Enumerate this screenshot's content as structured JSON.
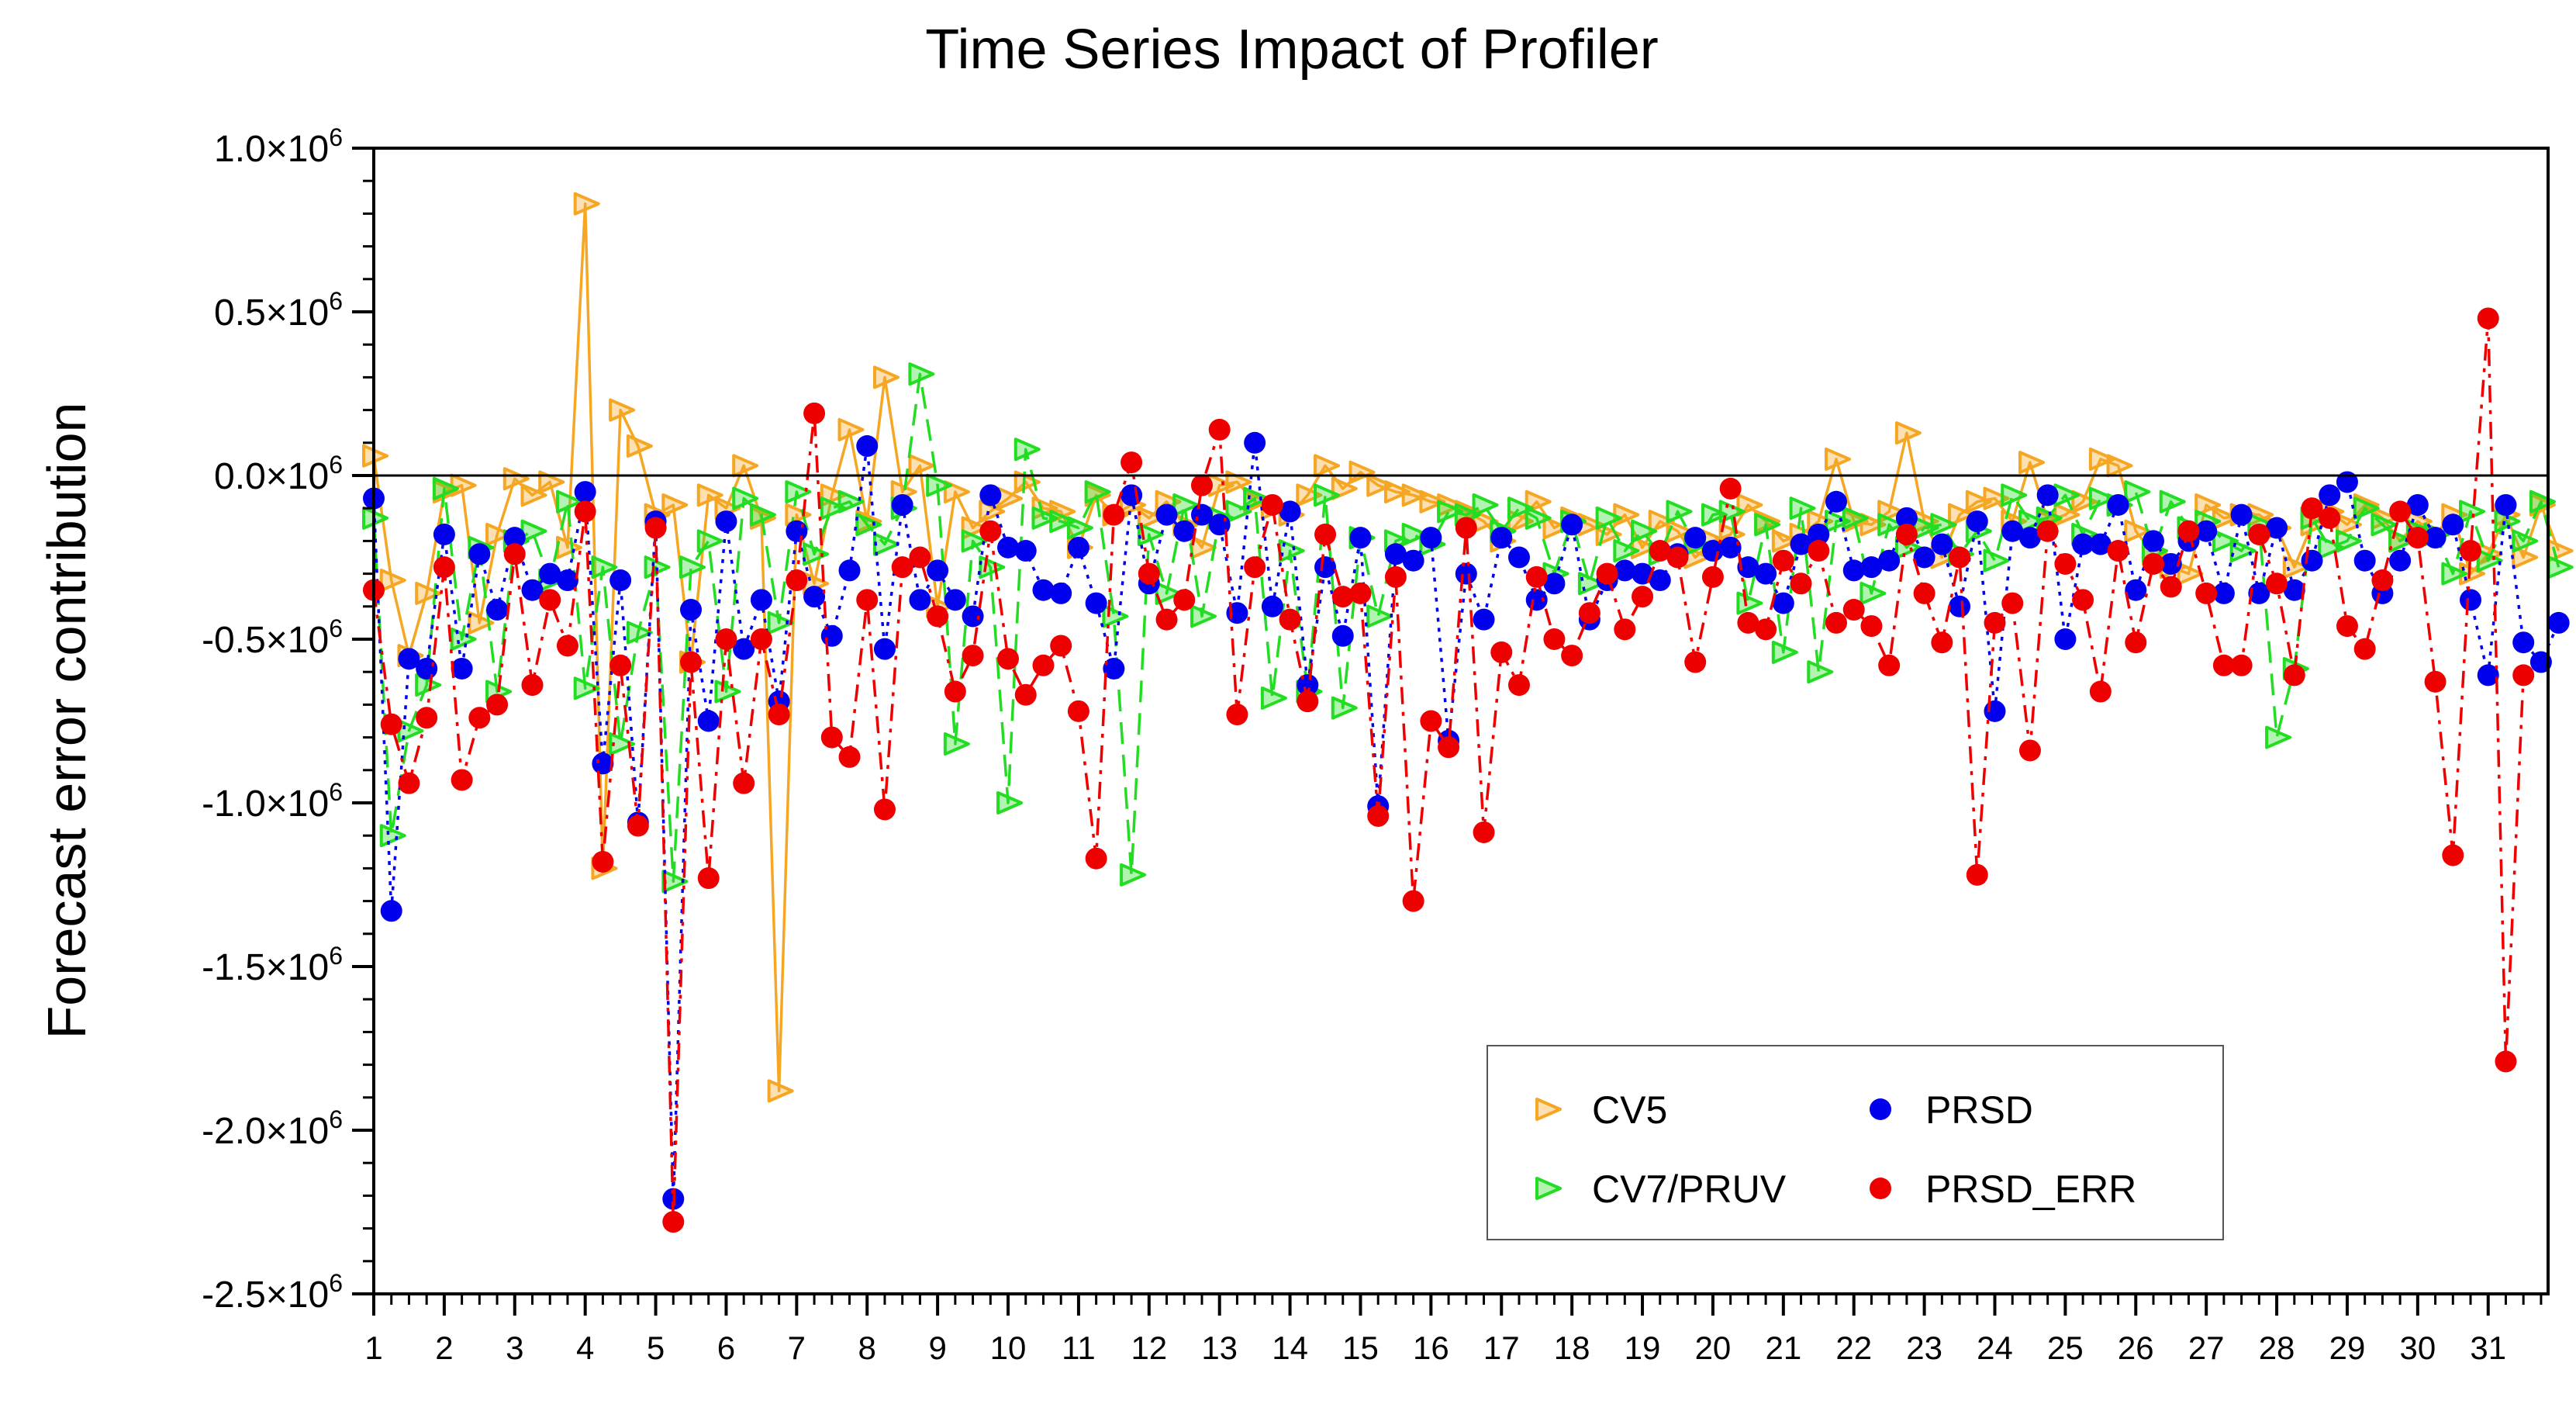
{
  "chart_data": {
    "type": "line",
    "title": "Time Series Impact of Profiler",
    "ylabel": "Forecast error contribution",
    "xlabel": "",
    "unit_multiplier_label": "×10",
    "unit_exponent": "6",
    "ylim": [
      -2.5,
      1.0
    ],
    "y_ticks": [
      1.0,
      0.5,
      0.0,
      -0.5,
      -1.0,
      -1.5,
      -2.0,
      -2.5
    ],
    "y_tick_labels": [
      "1.0",
      "0.5",
      "0.0",
      "-0.5",
      "-1.0",
      "-1.5",
      "-2.0",
      "-2.5"
    ],
    "xlim": [
      1,
      31.85
    ],
    "x_ticks": [
      1,
      2,
      3,
      4,
      5,
      6,
      7,
      8,
      9,
      10,
      11,
      12,
      13,
      14,
      15,
      16,
      17,
      18,
      19,
      20,
      21,
      22,
      23,
      24,
      25,
      26,
      27,
      28,
      29,
      30,
      31
    ],
    "x_tick_labels": [
      "1",
      "2",
      "3",
      "4",
      "5",
      "6",
      "7",
      "8",
      "9",
      "10",
      "11",
      "12",
      "13",
      "14",
      "15",
      "16",
      "17",
      "18",
      "19",
      "20",
      "21",
      "22",
      "23",
      "24",
      "25",
      "26",
      "27",
      "28",
      "29",
      "30",
      "31"
    ],
    "reference_line": 0.0,
    "grid": false,
    "legend_position": "bottom-right",
    "points_per_day": 4,
    "series": [
      {
        "name": "CV5",
        "color": "#f5a623",
        "marker": "triangle",
        "line": "solid",
        "values": [
          0.06,
          -0.32,
          -0.55,
          -0.36,
          -0.05,
          -0.03,
          -0.45,
          -0.18,
          -0.01,
          -0.06,
          -0.02,
          -0.22,
          0.83,
          -1.2,
          0.2,
          0.09,
          -0.12,
          -0.09,
          -0.57,
          -0.06,
          -0.1,
          0.03,
          -0.13,
          -1.88,
          -0.12,
          -0.33,
          -0.06,
          0.14,
          -0.14,
          0.3,
          -0.05,
          0.03,
          -0.4,
          -0.05,
          -0.16,
          -0.11,
          -0.07,
          -0.02,
          -0.1,
          -0.11,
          -0.22,
          -0.06,
          -0.12,
          -0.09,
          -0.13,
          -0.08,
          -0.15,
          -0.22,
          -0.03,
          -0.02,
          -0.08,
          -0.1,
          -0.12,
          -0.06,
          0.03,
          -0.04,
          0.01,
          -0.03,
          -0.05,
          -0.06,
          -0.08,
          -0.09,
          -0.11,
          -0.14,
          -0.2,
          -0.14,
          -0.08,
          -0.16,
          -0.13,
          -0.15,
          -0.18,
          -0.12,
          -0.22,
          -0.14,
          -0.17,
          -0.25,
          -0.2,
          -0.18,
          -0.09,
          -0.14,
          -0.2,
          -0.18,
          -0.14,
          0.05,
          -0.14,
          -0.15,
          -0.11,
          0.13,
          -0.14,
          -0.25,
          -0.12,
          -0.08,
          -0.07,
          -0.14,
          0.04,
          -0.14,
          -0.12,
          -0.08,
          0.05,
          0.03,
          -0.17,
          -0.24,
          -0.28,
          -0.3,
          -0.09,
          -0.13,
          -0.12,
          -0.12,
          -0.16,
          -0.28,
          -0.15,
          -0.11,
          -0.15,
          -0.09,
          -0.13,
          -0.2,
          -0.14,
          -0.18,
          -0.12,
          -0.3,
          -0.24,
          -0.12,
          -0.25,
          -0.09,
          -0.23
        ]
      },
      {
        "name": "CV7/PRUV",
        "color": "#22dd22",
        "marker": "triangle",
        "line": "dashed",
        "values": [
          -0.13,
          -1.1,
          -0.78,
          -0.64,
          -0.04,
          -0.5,
          -0.22,
          -0.66,
          -0.2,
          -0.17,
          -0.32,
          -0.08,
          -0.65,
          -0.28,
          -0.82,
          -0.48,
          -0.28,
          -1.24,
          -0.28,
          -0.2,
          -0.66,
          -0.07,
          -0.12,
          -0.45,
          -0.05,
          -0.24,
          -0.1,
          -0.08,
          -0.15,
          -0.21,
          -0.1,
          0.31,
          -0.03,
          -0.82,
          -0.2,
          -0.28,
          -1.0,
          0.08,
          -0.13,
          -0.14,
          -0.16,
          -0.05,
          -0.43,
          -1.22,
          -0.18,
          -0.36,
          -0.09,
          -0.43,
          -0.13,
          -0.11,
          -0.07,
          -0.68,
          -0.23,
          -0.66,
          -0.06,
          -0.71,
          -0.19,
          -0.43,
          -0.2,
          -0.18,
          -0.21,
          -0.11,
          -0.12,
          -0.09,
          -0.17,
          -0.1,
          -0.13,
          -0.3,
          -0.14,
          -0.33,
          -0.13,
          -0.23,
          -0.17,
          -0.24,
          -0.11,
          -0.21,
          -0.12,
          -0.11,
          -0.39,
          -0.15,
          -0.54,
          -0.1,
          -0.6,
          -0.14,
          -0.13,
          -0.36,
          -0.15,
          -0.22,
          -0.16,
          -0.15,
          -0.24,
          -0.17,
          -0.26,
          -0.06,
          -0.14,
          -0.13,
          -0.06,
          -0.18,
          -0.07,
          -0.09,
          -0.05,
          -0.23,
          -0.08,
          -0.16,
          -0.14,
          -0.2,
          -0.23,
          -0.15,
          -0.8,
          -0.59,
          -0.13,
          -0.22,
          -0.2,
          -0.1,
          -0.15,
          -0.2,
          -0.17,
          -0.18,
          -0.3,
          -0.11,
          -0.26,
          -0.14,
          -0.2,
          -0.08,
          -0.28
        ]
      },
      {
        "name": "PRSD",
        "color": "#0000ee",
        "marker": "circle",
        "line": "dotted",
        "values": [
          -0.07,
          -1.33,
          -0.56,
          -0.59,
          -0.18,
          -0.59,
          -0.24,
          -0.41,
          -0.19,
          -0.35,
          -0.3,
          -0.32,
          -0.05,
          -0.88,
          -0.32,
          -1.06,
          -0.14,
          -2.21,
          -0.41,
          -0.75,
          -0.14,
          -0.53,
          -0.38,
          -0.69,
          -0.17,
          -0.37,
          -0.49,
          -0.29,
          0.09,
          -0.53,
          -0.09,
          -0.38,
          -0.29,
          -0.38,
          -0.43,
          -0.06,
          -0.22,
          -0.23,
          -0.35,
          -0.36,
          -0.22,
          -0.39,
          -0.59,
          -0.06,
          -0.33,
          -0.12,
          -0.17,
          -0.12,
          -0.15,
          -0.42,
          0.1,
          -0.4,
          -0.11,
          -0.64,
          -0.28,
          -0.49,
          -0.19,
          -1.01,
          -0.24,
          -0.26,
          -0.19,
          -0.81,
          -0.3,
          -0.44,
          -0.19,
          -0.25,
          -0.38,
          -0.33,
          -0.15,
          -0.44,
          -0.32,
          -0.29,
          -0.3,
          -0.32,
          -0.24,
          -0.19,
          -0.23,
          -0.22,
          -0.28,
          -0.3,
          -0.39,
          -0.21,
          -0.18,
          -0.08,
          -0.29,
          -0.28,
          -0.26,
          -0.13,
          -0.25,
          -0.21,
          -0.4,
          -0.14,
          -0.72,
          -0.17,
          -0.19,
          -0.06,
          -0.5,
          -0.21,
          -0.21,
          -0.09,
          -0.35,
          -0.2,
          -0.27,
          -0.2,
          -0.17,
          -0.36,
          -0.12,
          -0.36,
          -0.16,
          -0.35,
          -0.26,
          -0.06,
          -0.02,
          -0.26,
          -0.36,
          -0.26,
          -0.09,
          -0.19,
          -0.15,
          -0.38,
          -0.61,
          -0.09,
          -0.51,
          -0.57,
          -0.45
        ]
      },
      {
        "name": "PRSD_ERR",
        "color": "#ee0000",
        "marker": "circle",
        "line": "dashdot",
        "values": [
          -0.35,
          -0.76,
          -0.94,
          -0.74,
          -0.28,
          -0.93,
          -0.74,
          -0.7,
          -0.24,
          -0.64,
          -0.38,
          -0.52,
          -0.11,
          -1.18,
          -0.58,
          -1.07,
          -0.16,
          -2.28,
          -0.57,
          -1.23,
          -0.5,
          -0.94,
          -0.5,
          -0.73,
          -0.32,
          0.19,
          -0.8,
          -0.86,
          -0.38,
          -1.02,
          -0.28,
          -0.25,
          -0.43,
          -0.66,
          -0.55,
          -0.17,
          -0.56,
          -0.67,
          -0.58,
          -0.52,
          -0.72,
          -1.17,
          -0.12,
          0.04,
          -0.3,
          -0.44,
          -0.38,
          -0.03,
          0.14,
          -0.73,
          -0.28,
          -0.09,
          -0.44,
          -0.69,
          -0.18,
          -0.37,
          -0.36,
          -1.04,
          -0.31,
          -1.3,
          -0.75,
          -0.83,
          -0.16,
          -1.09,
          -0.54,
          -0.64,
          -0.31,
          -0.5,
          -0.55,
          -0.42,
          -0.3,
          -0.47,
          -0.37,
          -0.23,
          -0.25,
          -0.57,
          -0.31,
          -0.04,
          -0.45,
          -0.47,
          -0.26,
          -0.33,
          -0.23,
          -0.45,
          -0.41,
          -0.46,
          -0.58,
          -0.18,
          -0.36,
          -0.51,
          -0.25,
          -1.22,
          -0.45,
          -0.39,
          -0.84,
          -0.17,
          -0.27,
          -0.38,
          -0.66,
          -0.23,
          -0.51,
          -0.27,
          -0.34,
          -0.17,
          -0.36,
          -0.58,
          -0.58,
          -0.18,
          -0.33,
          -0.61,
          -0.1,
          -0.13,
          -0.46,
          -0.53,
          -0.32,
          -0.11,
          -0.19,
          -0.63,
          -1.16,
          -0.23,
          0.48,
          -1.79,
          -0.61
        ]
      }
    ]
  }
}
